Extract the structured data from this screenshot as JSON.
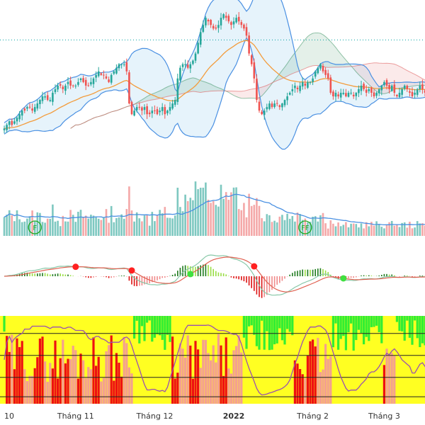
{
  "chart_data": {
    "type": "candlestick",
    "x_axis": {
      "tick_labels": [
        {
          "label": "10",
          "bold": false,
          "index": 0
        },
        {
          "label": "Tháng 11",
          "bold": false,
          "index": 28
        },
        {
          "label": "Tháng 12",
          "bold": false,
          "index": 59
        },
        {
          "label": "2022",
          "bold": true,
          "index": 90
        },
        {
          "label": "Tháng 2",
          "bold": false,
          "index": 121
        },
        {
          "label": "Tháng 3",
          "bold": false,
          "index": 149
        }
      ]
    },
    "price_range": [
      10,
      60
    ],
    "reference_price": 50.8,
    "close": [
      26,
      27,
      28,
      27,
      28,
      29,
      30,
      31,
      31,
      32,
      32,
      31,
      32,
      33,
      34,
      35,
      35,
      34,
      34,
      36,
      37,
      38,
      38,
      37,
      38,
      39,
      38,
      38,
      38,
      39,
      40,
      39,
      38,
      38,
      39,
      40,
      41,
      42,
      41,
      41,
      40,
      39,
      41,
      42,
      43,
      44,
      44,
      44,
      42,
      33,
      30,
      31,
      32,
      32,
      31,
      32,
      30,
      30,
      31,
      31,
      30,
      31,
      32,
      30,
      31,
      32,
      33,
      34,
      40,
      43,
      44,
      44,
      43,
      44,
      45,
      47,
      50,
      53,
      55,
      57,
      56,
      55,
      54,
      54,
      55,
      57,
      58,
      57,
      56,
      55,
      56,
      57,
      56,
      55,
      54,
      52,
      47,
      44,
      40,
      34,
      31,
      30,
      31,
      32,
      33,
      32,
      33,
      33,
      32,
      33,
      34,
      35,
      36,
      37,
      38,
      37,
      38,
      39,
      38,
      39,
      39,
      40,
      42,
      43,
      44,
      42,
      41,
      40,
      36,
      35,
      36,
      35,
      36,
      36,
      35,
      36,
      36,
      35,
      36,
      37,
      38,
      37,
      36,
      37,
      36,
      35,
      36,
      37,
      38,
      39,
      38,
      37,
      38,
      36,
      35,
      36,
      37,
      38,
      37,
      36,
      35,
      36,
      37,
      38,
      37,
      36,
      35
    ],
    "indicators": [
      "bollinger_bands",
      "ichimoku_cloud",
      "moving_average",
      "volume",
      "macd",
      "money_flow_histogram"
    ],
    "volume_markers": [
      {
        "label": "F",
        "index": 12
      },
      {
        "label": "FF",
        "index": 118
      }
    ],
    "macd_cross_markers": [
      {
        "type": "sell",
        "index": 28
      },
      {
        "type": "sell",
        "index": 50
      },
      {
        "type": "buy",
        "index": 73
      },
      {
        "type": "sell",
        "index": 98
      },
      {
        "type": "buy",
        "index": 133
      }
    ],
    "colors": {
      "up": "#26a69a",
      "down": "#ef5350",
      "bollinger": "#4a90e2",
      "bollinger_fill": "#dbeefa",
      "moving_average": "#f39c3c",
      "cloud_green": "#2e8b57",
      "cloud_red": "#e06060",
      "reference_line": "#00a0a0",
      "volume_up": "#7ec8c0",
      "volume_down": "#f4a8a8",
      "macd_line": "#88c8a8",
      "signal_line": "#e06050",
      "macd_marker_sell": "#ff2020",
      "macd_marker_buy": "#40e040",
      "flow_yellow": "#ffff22",
      "flow_green": "#33ee33",
      "flow_red": "#ee1111",
      "flow_salmon": "#f4a090",
      "flow_line": "#9a50b0"
    }
  }
}
